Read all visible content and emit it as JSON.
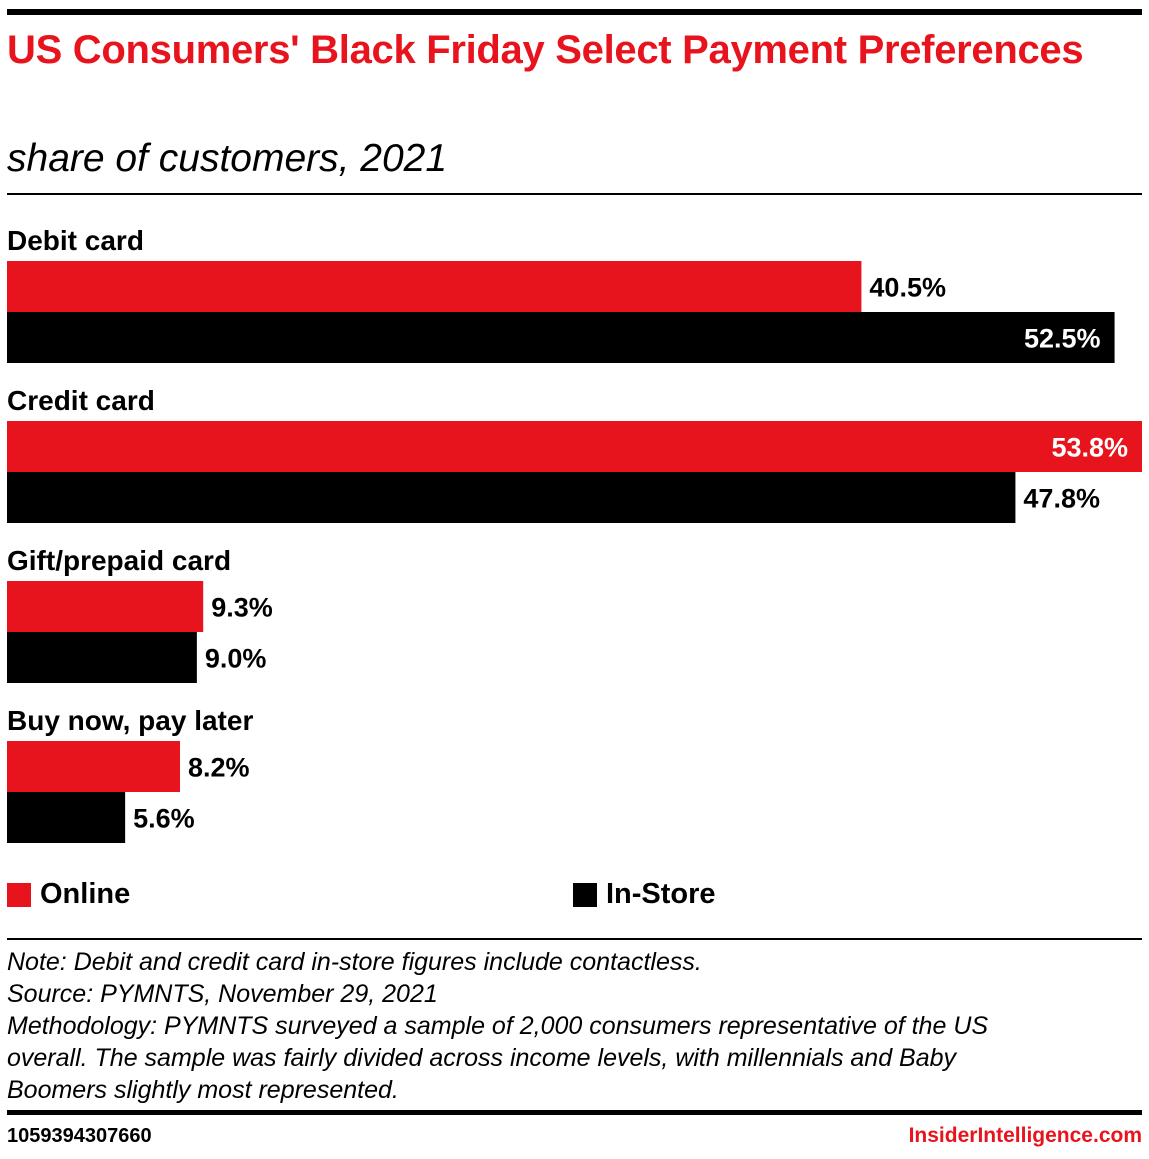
{
  "header": {
    "title": "US Consumers' Black Friday Select Payment Preferences",
    "subtitle": "share of customers, 2021"
  },
  "colors": {
    "accent": "#e8141d",
    "online": "#e8141d",
    "in_store": "#000000"
  },
  "chart_data": {
    "type": "bar",
    "orientation": "horizontal",
    "categories": [
      "Debit card",
      "Credit card",
      "Gift/prepaid card",
      "Buy now, pay later"
    ],
    "series": [
      {
        "name": "Online",
        "values": [
          40.5,
          53.8,
          9.3,
          8.2
        ],
        "labels": [
          "40.5%",
          "53.8%",
          "9.3%",
          "8.2%"
        ],
        "color": "#e8141d"
      },
      {
        "name": "In-Store",
        "values": [
          52.5,
          47.8,
          9.0,
          5.6
        ],
        "labels": [
          "52.5%",
          "47.8%",
          "9.0%",
          "5.6%"
        ],
        "color": "#000000"
      }
    ],
    "unit": "%",
    "xlim": [
      0,
      53.8
    ],
    "grid": false,
    "legend_position": "bottom"
  },
  "legend": {
    "online": "Online",
    "in_store": "In-Store"
  },
  "notes": {
    "note": "Note: Debit and credit card in-store figures include contactless.",
    "source": "Source: PYMNTS, November 29, 2021",
    "methodology_1": "Methodology: PYMNTS surveyed a sample of 2,000 consumers representative of the US",
    "methodology_2": "overall. The sample was fairly divided across income levels, with millennials and Baby",
    "methodology_3": "Boomers slightly most represented."
  },
  "footer": {
    "chart_id": "1059394307660",
    "brand": "InsiderIntelligence.com"
  }
}
